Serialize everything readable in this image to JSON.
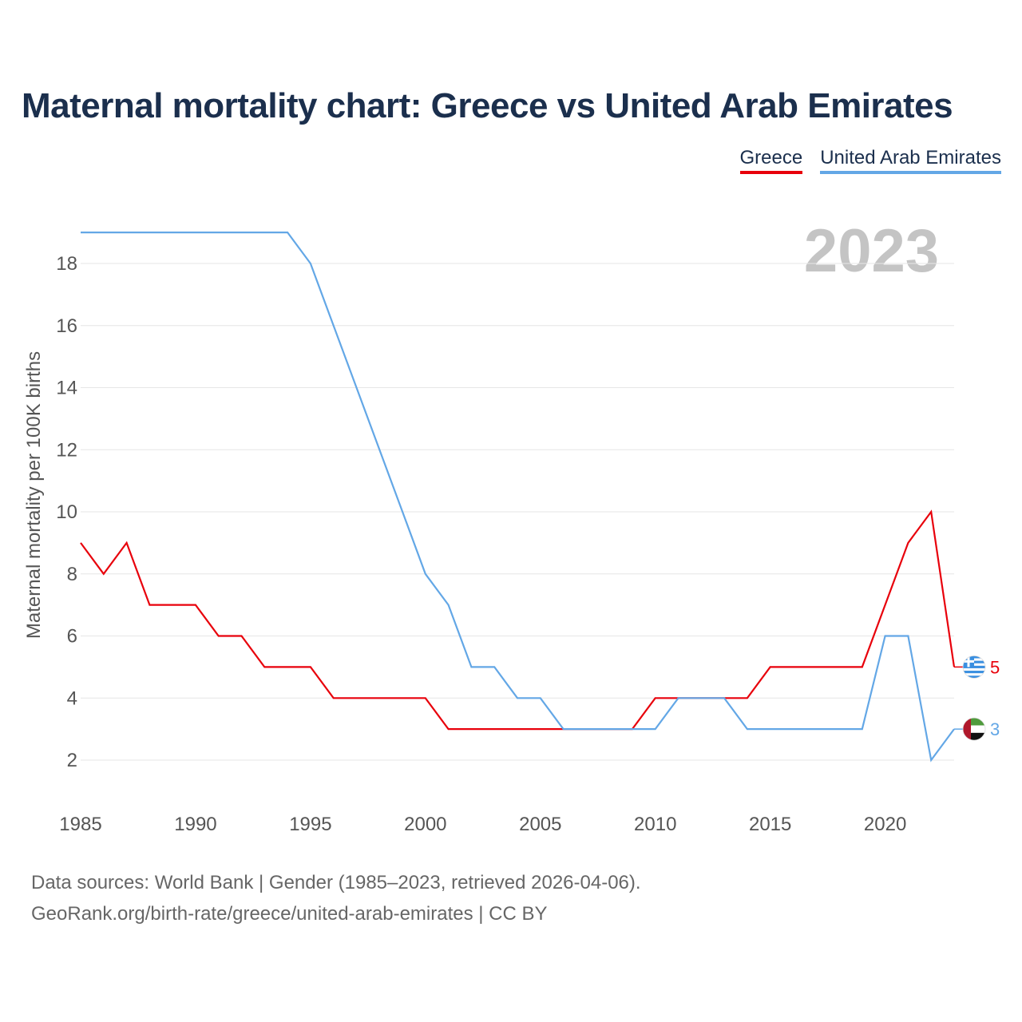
{
  "page": {
    "title": "Maternal mortality chart: Greece vs United Arab Emirates",
    "source_line": "Data sources: World Bank | Gender (1985–2023, retrieved 2026-04-06).",
    "credit_line": "GeoRank.org/birth-rate/greece/united-arab-emirates | CC BY",
    "year_watermark": "2023"
  },
  "chart_data": {
    "type": "line",
    "title": "Maternal mortality chart: Greece vs United Arab Emirates",
    "xlabel": "",
    "ylabel": "Maternal mortality per 100K births",
    "x": [
      1985,
      1986,
      1987,
      1988,
      1989,
      1990,
      1991,
      1992,
      1993,
      1994,
      1995,
      1996,
      1997,
      1998,
      1999,
      2000,
      2001,
      2002,
      2003,
      2004,
      2005,
      2006,
      2007,
      2008,
      2009,
      2010,
      2011,
      2012,
      2013,
      2014,
      2015,
      2016,
      2017,
      2018,
      2019,
      2020,
      2021,
      2022,
      2023
    ],
    "xlim": [
      1985,
      2023
    ],
    "ylim": [
      0.9,
      19.8
    ],
    "x_ticks": [
      1985,
      1990,
      1995,
      2000,
      2005,
      2010,
      2015,
      2020
    ],
    "y_ticks": [
      2,
      4,
      6,
      8,
      10,
      12,
      14,
      16,
      18
    ],
    "grid": true,
    "legend_position": "top-right",
    "series": [
      {
        "name": "Greece",
        "color": "#e8000b",
        "flag_icon": "greece-flag-icon",
        "end_label": "5",
        "values": [
          9,
          8,
          9,
          7,
          7,
          7,
          6,
          6,
          5,
          5,
          5,
          4,
          4,
          4,
          4,
          4,
          3,
          3,
          3,
          3,
          3,
          3,
          3,
          3,
          3,
          4,
          4,
          4,
          4,
          4,
          5,
          5,
          5,
          5,
          5,
          7,
          9,
          10,
          5
        ]
      },
      {
        "name": "United Arab Emirates",
        "color": "#63a7e6",
        "flag_icon": "uae-flag-icon",
        "end_label": "3",
        "values": [
          19,
          19,
          19,
          19,
          19,
          19,
          19,
          19,
          19,
          19,
          18,
          16,
          14,
          12,
          10,
          8,
          7,
          5,
          5,
          4,
          4,
          3,
          3,
          3,
          3,
          3,
          4,
          4,
          4,
          3,
          3,
          3,
          3,
          3,
          3,
          6,
          6,
          2,
          3
        ]
      }
    ]
  }
}
